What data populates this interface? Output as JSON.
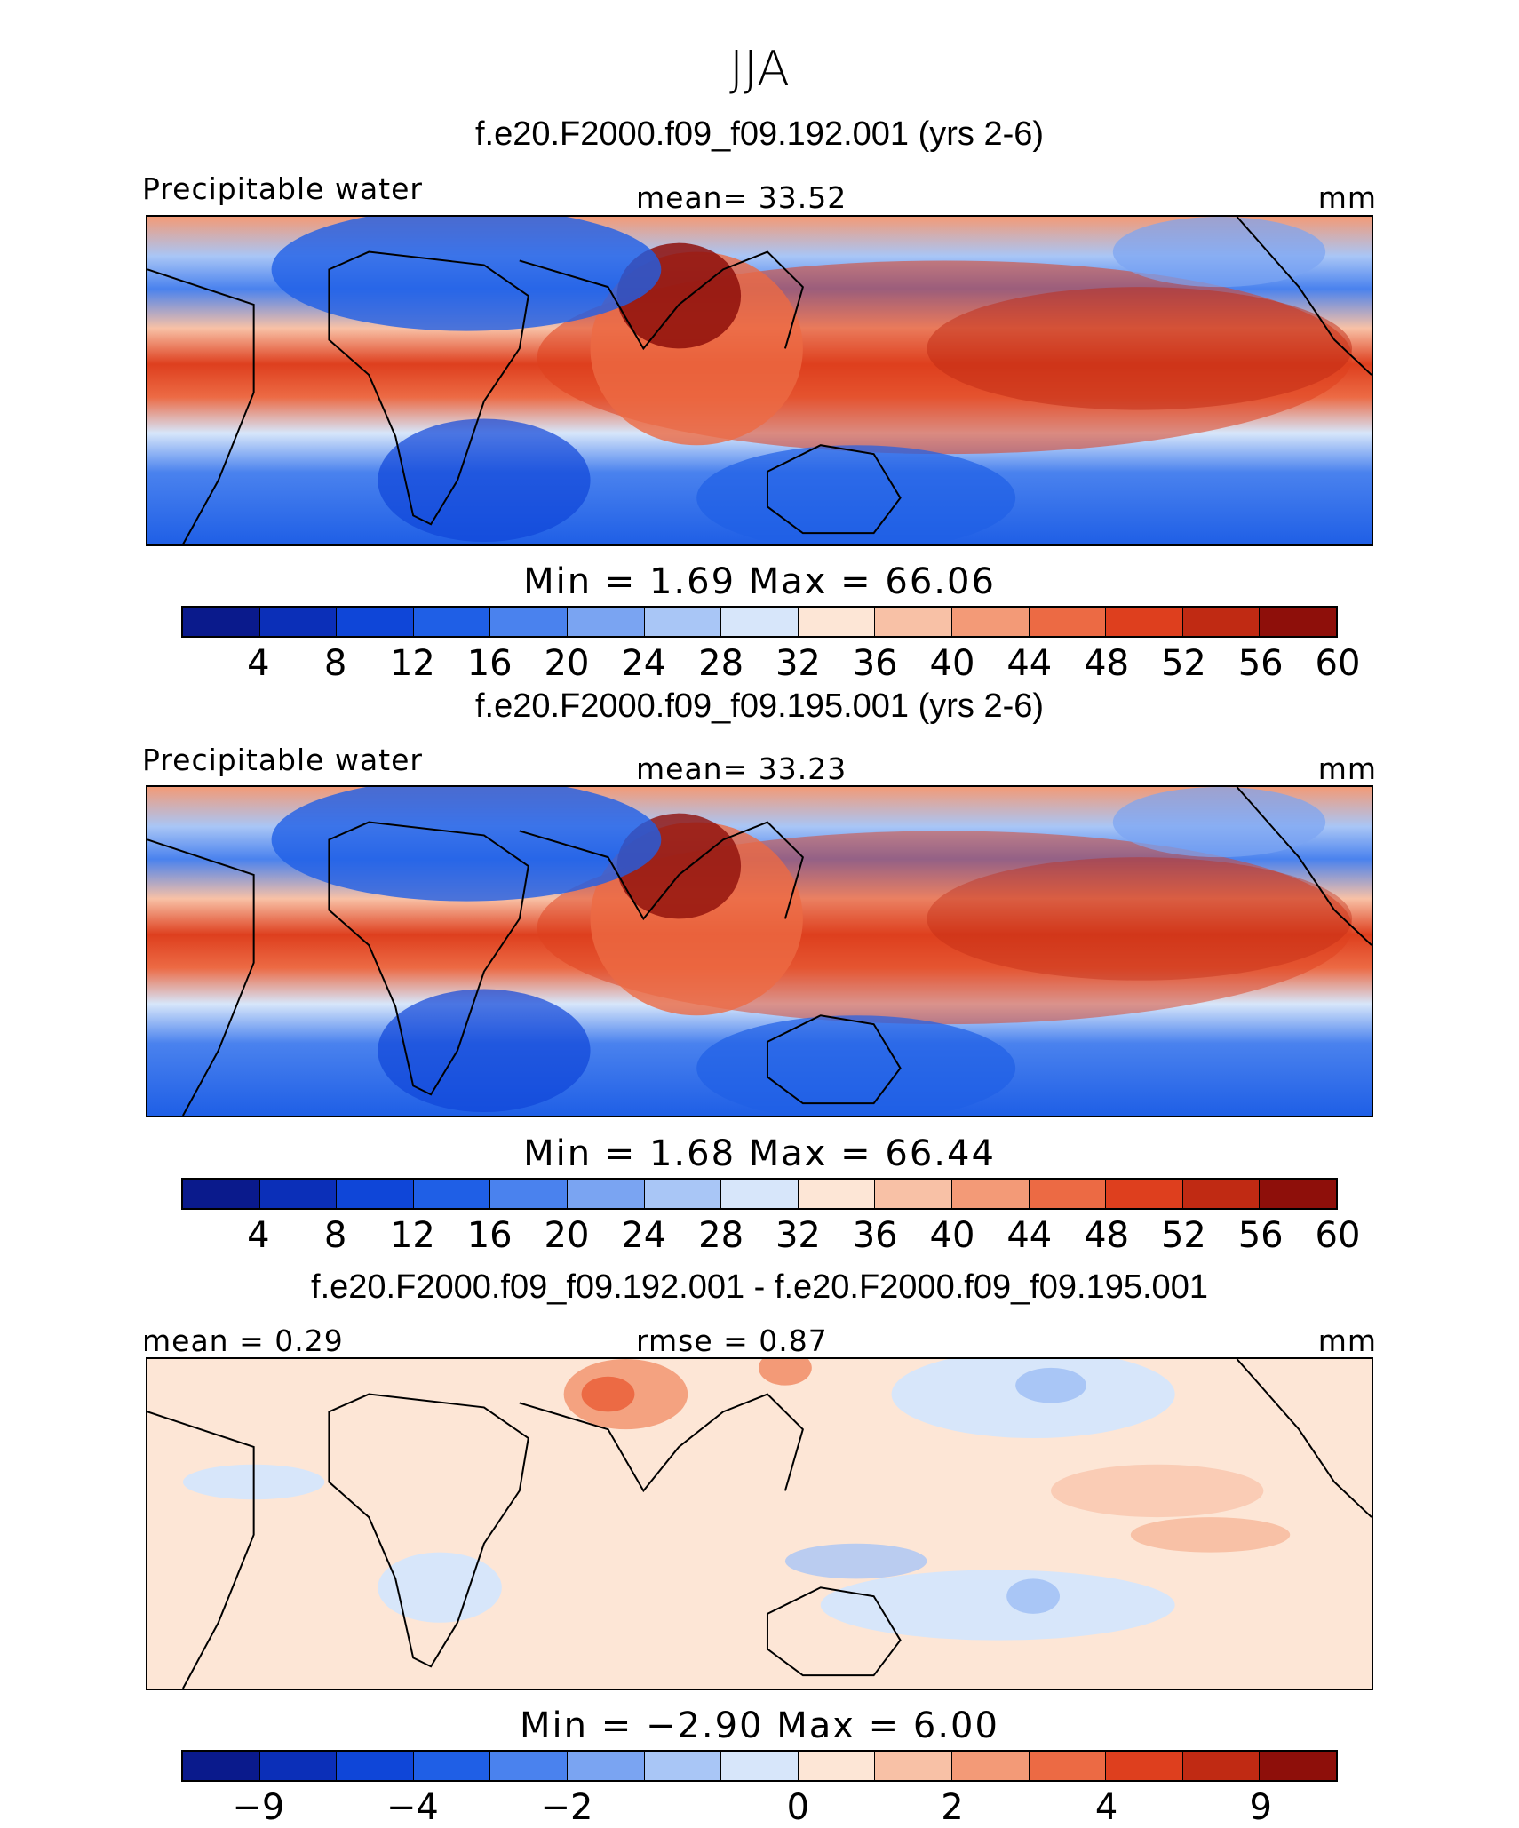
{
  "season": "JJA",
  "panels": [
    {
      "title": "f.e20.F2000.f09_f09.192.001 (yrs 2-6)",
      "label_left": "Precipitable water",
      "label_center": "mean=   33.52",
      "label_right": "mm",
      "minmax": "Min =    1.69  Max =   66.06",
      "ticks": [
        "4",
        "8",
        "12",
        "16",
        "20",
        "24",
        "28",
        "32",
        "36",
        "40",
        "44",
        "48",
        "52",
        "56",
        "60"
      ]
    },
    {
      "title": "f.e20.F2000.f09_f09.195.001 (yrs 2-6)",
      "label_left": "Precipitable water",
      "label_center": "mean=   33.23",
      "label_right": "mm",
      "minmax": "Min =    1.68  Max =   66.44",
      "ticks": [
        "4",
        "8",
        "12",
        "16",
        "20",
        "24",
        "28",
        "32",
        "36",
        "40",
        "44",
        "48",
        "52",
        "56",
        "60"
      ]
    },
    {
      "title": "f.e20.F2000.f09_f09.192.001 - f.e20.F2000.f09_f09.195.001",
      "label_left": "mean =    0.29",
      "label_center": "rmse =    0.87",
      "label_right": "mm",
      "minmax": "Min =   −2.90  Max =     6.00",
      "ticks": [
        "−9",
        "−4",
        "−2",
        "0",
        "2",
        "4",
        "9"
      ]
    }
  ],
  "colors": [
    "#0a1a8c",
    "#0b2fb8",
    "#0f46d8",
    "#1f5fe6",
    "#4a82ee",
    "#7aa4f2",
    "#a9c6f6",
    "#d7e6fa",
    "#fde6d6",
    "#f8c1a6",
    "#f39a77",
    "#ec6a44",
    "#de3f1e",
    "#c02a13",
    "#8e0f0a"
  ]
}
